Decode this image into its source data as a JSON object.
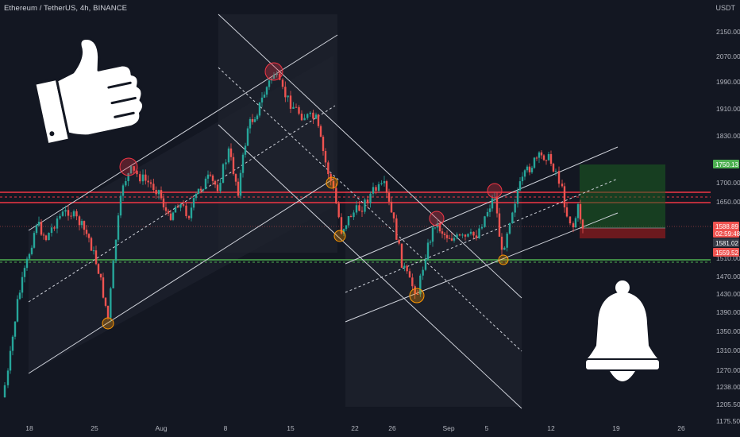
{
  "header": {
    "symbol_title": "Ethereum / TetherUS, 4h, BINANCE",
    "currency": "USDT"
  },
  "chart_data": {
    "type": "candlestick",
    "title": "Ethereum / TetherUS, 4h, BINANCE",
    "y_axis": {
      "unit": "USDT",
      "ticks": [
        {
          "label": "2150.00",
          "value": 2150
        },
        {
          "label": "2070.00",
          "value": 2070
        },
        {
          "label": "1990.00",
          "value": 1990
        },
        {
          "label": "1910.00",
          "value": 1910
        },
        {
          "label": "1830.00",
          "value": 1830
        },
        {
          "label": "1700.00",
          "value": 1700
        },
        {
          "label": "1650.00",
          "value": 1650
        },
        {
          "label": "1510.00",
          "value": 1510
        },
        {
          "label": "1470.00",
          "value": 1470
        },
        {
          "label": "1430.00",
          "value": 1430
        },
        {
          "label": "1390.00",
          "value": 1390
        },
        {
          "label": "1350.00",
          "value": 1350
        },
        {
          "label": "1310.00",
          "value": 1310
        },
        {
          "label": "1270.00",
          "value": 1270
        },
        {
          "label": "1238.00",
          "value": 1238
        },
        {
          "label": "1205.50",
          "value": 1205.5
        },
        {
          "label": "1175.50",
          "value": 1175.5
        }
      ]
    },
    "x_axis": {
      "ticks": [
        {
          "label": "18",
          "date": "2022-07-18"
        },
        {
          "label": "25",
          "date": "2022-07-25"
        },
        {
          "label": "Aug",
          "date": "2022-08-01"
        },
        {
          "label": "8",
          "date": "2022-08-08"
        },
        {
          "label": "15",
          "date": "2022-08-15"
        },
        {
          "label": "22",
          "date": "2022-08-22"
        },
        {
          "label": "26",
          "date": "2022-08-26"
        },
        {
          "label": "Sep",
          "date": "2022-09-01"
        },
        {
          "label": "5",
          "date": "2022-09-05"
        },
        {
          "label": "12",
          "date": "2022-09-12"
        },
        {
          "label": "19",
          "date": "2022-09-19"
        },
        {
          "label": "26",
          "date": "2022-09-26"
        }
      ]
    },
    "price_tags": [
      {
        "label": "1750.13",
        "color": "#4caf50"
      },
      {
        "label": "1588.89",
        "color": "#ef5350"
      },
      {
        "label": "02:59:48",
        "color": "#ef5350"
      },
      {
        "label": "1581.02",
        "color": "#363a45"
      },
      {
        "label": "1559.52",
        "color": "#ef5350"
      }
    ],
    "key_levels": [
      {
        "name": "resistance",
        "value": 1681,
        "color": "#f23645"
      },
      {
        "name": "resistance",
        "value": 1655,
        "color": "#f23645"
      },
      {
        "name": "support",
        "value": 1515,
        "color": "#4caf50"
      }
    ],
    "trade_setup": {
      "entry": 1581.02,
      "target": 1750.13,
      "stop": 1559.52
    },
    "grid": false,
    "colors": {
      "background": "#131722",
      "up": "#26a69a",
      "down": "#ef5350",
      "channel": "#d1d4dc",
      "resistance": "#f23645",
      "support": "#4caf50",
      "marker_top": "#f23645",
      "marker_bottom": "#ff9800"
    }
  },
  "decorations": {
    "left_icon": "thumbs-up-icon",
    "right_icon": "bell-icon"
  }
}
